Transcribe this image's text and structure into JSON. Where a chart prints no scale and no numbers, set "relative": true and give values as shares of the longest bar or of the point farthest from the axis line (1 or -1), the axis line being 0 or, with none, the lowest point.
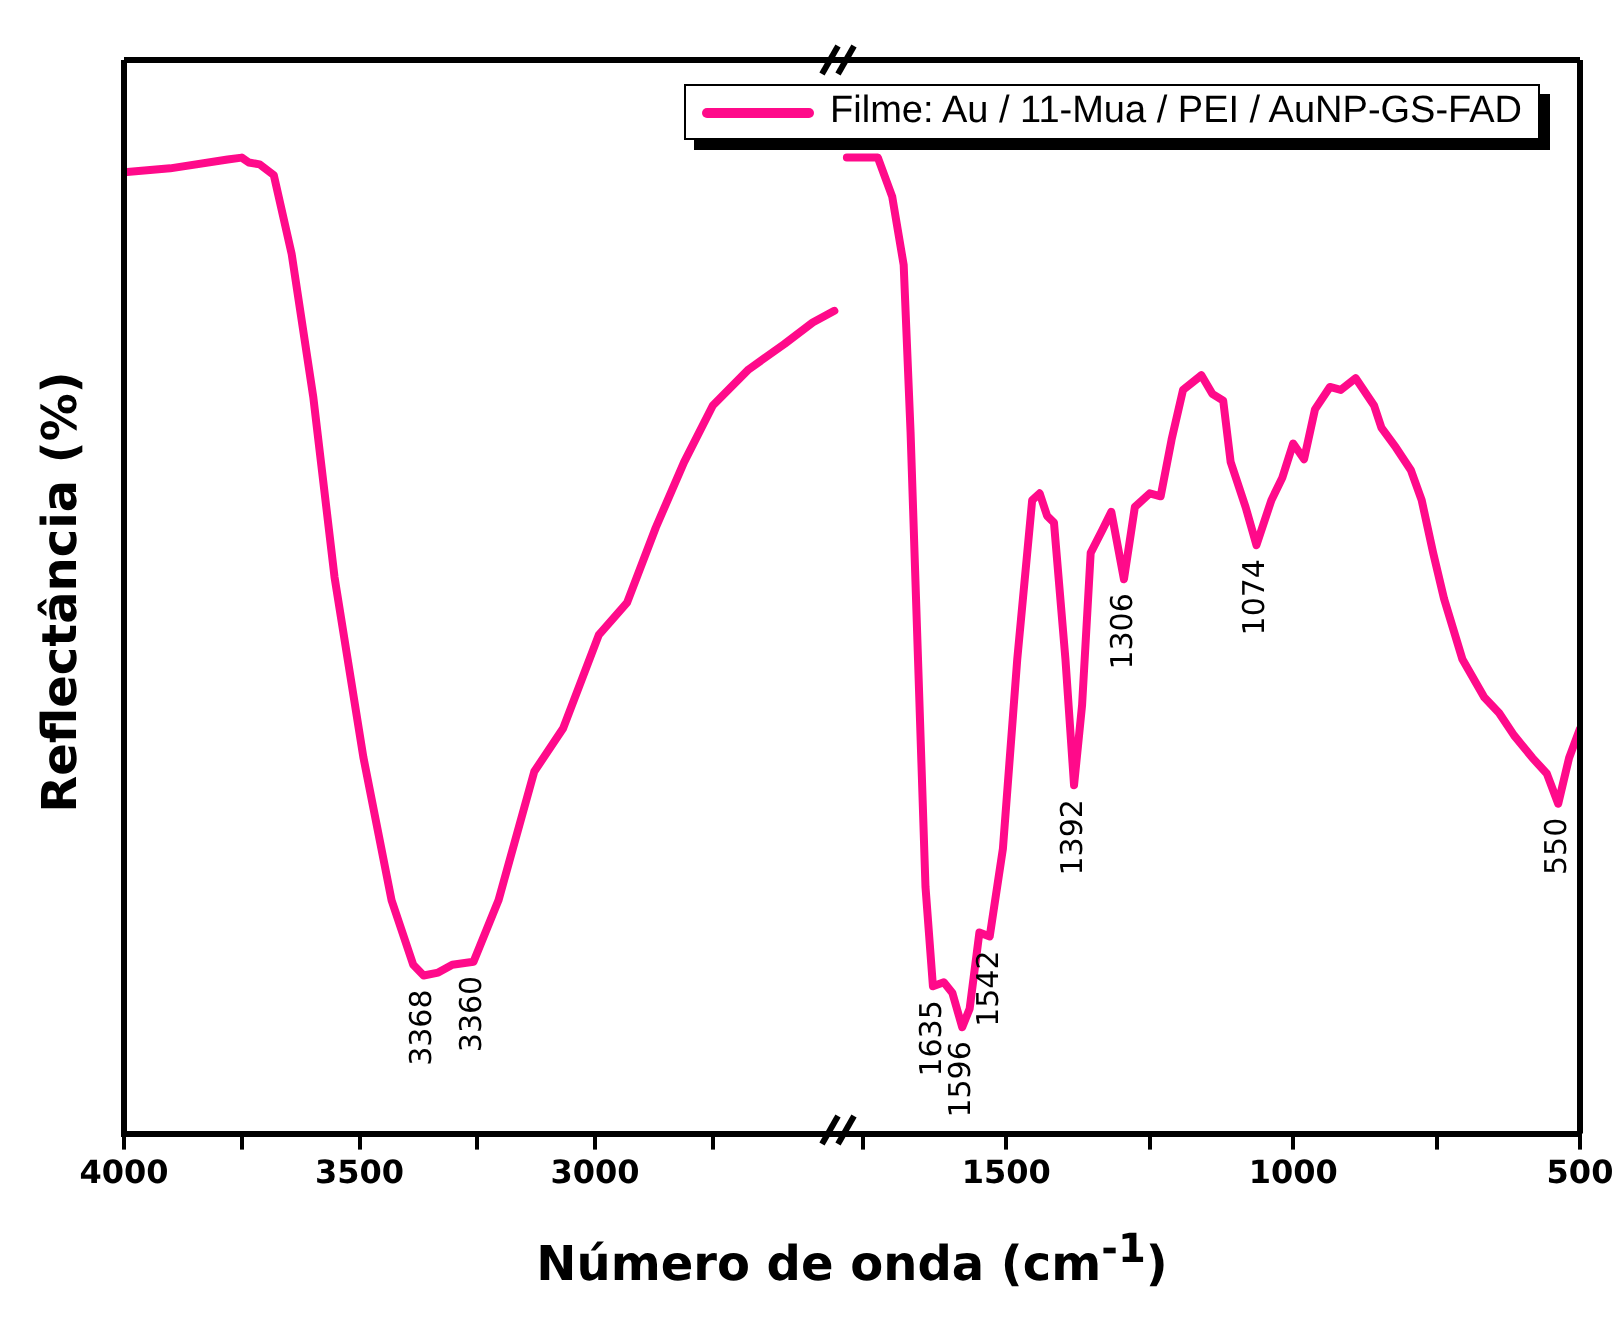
{
  "chart_data": [
    {
      "type": "line",
      "ylabel": "Reflectância (%)",
      "xlabel": "Número de onda (cm$^{-1}$)",
      "relative": true,
      "tick_labels": "x",
      "marker": "none",
      "line_style": "solid",
      "xlim": [
        4000,
        2480
      ],
      "xticks": [
        4000,
        {
          "value": 3750,
          "label": null
        },
        3500,
        {
          "value": 3250,
          "label": null
        },
        3000,
        {
          "value": 2750,
          "label": null
        }
      ],
      "x": [
        4000,
        3902,
        3780,
        3750,
        3735,
        3712,
        3682,
        3644,
        3598,
        3553,
        3492,
        3432,
        3386,
        3364,
        3333,
        3303,
        3258,
        3205,
        3129,
        3068,
        2992,
        2932,
        2871,
        2811,
        2750,
        2674,
        2598,
        2538,
        2492
      ],
      "series": [
        {
          "color": "#ff0a8a",
          "values": [
            0.985,
            0.989,
            0.998,
            1.0,
            0.995,
            0.993,
            0.982,
            0.901,
            0.754,
            0.57,
            0.386,
            0.239,
            0.173,
            0.162,
            0.165,
            0.173,
            0.176,
            0.239,
            0.371,
            0.415,
            0.511,
            0.544,
            0.621,
            0.688,
            0.746,
            0.783,
            0.809,
            0.831,
            0.843
          ]
        }
      ],
      "annotations": [
        {
          "text": "3368",
          "x": 3364,
          "y": 0.162
        },
        {
          "text": "3360",
          "x": 3258,
          "y": 0.176
        }
      ]
    },
    {
      "type": "line",
      "relative": true,
      "tick_labels": "x",
      "marker": "none",
      "line_style": "solid",
      "legend": "top",
      "xlim": [
        1790,
        500
      ],
      "xticks": [
        {
          "value": 1750,
          "label": null
        },
        1500,
        {
          "value": 1250,
          "label": null
        },
        1000,
        {
          "value": 750,
          "label": null
        },
        500
      ],
      "x": [
        1778,
        1724,
        1699,
        1679,
        1667,
        1654,
        1641,
        1628,
        1609,
        1594,
        1577,
        1564,
        1547,
        1529,
        1506,
        1481,
        1455,
        1442,
        1429,
        1417,
        1397,
        1382,
        1368,
        1353,
        1333,
        1317,
        1295,
        1276,
        1250,
        1231,
        1212,
        1192,
        1160,
        1141,
        1122,
        1109,
        1083,
        1064,
        1038,
        1019,
        1000,
        981,
        962,
        936,
        917,
        891,
        859,
        846,
        821,
        795,
        776,
        756,
        737,
        705,
        667,
        641,
        615,
        583,
        558,
        538,
        519,
        500
      ],
      "series": [
        {
          "name": "Filme: Au / 11-Mua / PEI / AuNP-GS-FAD",
          "color": "#ff0a8a",
          "values": [
            1,
            1,
            0.96,
            0.89,
            0.719,
            0.486,
            0.253,
            0.151,
            0.155,
            0.144,
            0.109,
            0.128,
            0.206,
            0.202,
            0.292,
            0.486,
            0.649,
            0.656,
            0.633,
            0.626,
            0.486,
            0.357,
            0.439,
            0.595,
            0.618,
            0.637,
            0.568,
            0.642,
            0.656,
            0.653,
            0.711,
            0.762,
            0.777,
            0.758,
            0.751,
            0.688,
            0.642,
            0.603,
            0.649,
            0.672,
            0.707,
            0.691,
            0.742,
            0.765,
            0.762,
            0.774,
            0.746,
            0.723,
            0.703,
            0.68,
            0.649,
            0.595,
            0.548,
            0.486,
            0.447,
            0.431,
            0.408,
            0.385,
            0.369,
            0.338,
            0.385,
            0.415
          ]
        }
      ],
      "annotations": [
        {
          "text": "1635",
          "x": 1628,
          "y": 0.151
        },
        {
          "text": "1596",
          "x": 1577,
          "y": 0.109
        },
        {
          "text": "1542",
          "x": 1529,
          "y": 0.202
        },
        {
          "text": "1392",
          "x": 1382,
          "y": 0.357
        },
        {
          "text": "1306",
          "x": 1295,
          "y": 0.568
        },
        {
          "text": "1074",
          "x": 1064,
          "y": 0.603
        },
        {
          "text": "550",
          "x": 538,
          "y": 0.338
        }
      ]
    }
  ]
}
